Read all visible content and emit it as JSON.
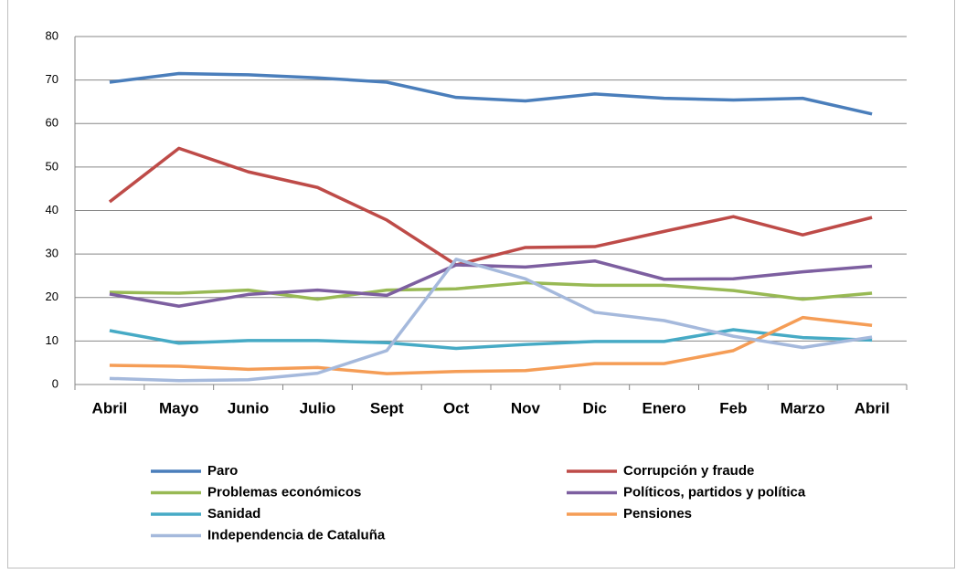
{
  "chart_data": {
    "type": "line",
    "categories": [
      "Abril",
      "Mayo",
      "Junio",
      "Julio",
      "Sept",
      "Oct",
      "Nov",
      "Dic",
      "Enero",
      "Feb",
      "Marzo",
      "Abril"
    ],
    "series": [
      {
        "name": "Paro",
        "color": "#4a7ebb",
        "values": [
          69.5,
          71.5,
          71.2,
          70.5,
          69.5,
          66,
          65.2,
          66.8,
          65.8,
          65.4,
          65.8,
          62.2
        ]
      },
      {
        "name": "Corrupción y fraude",
        "color": "#be4b48",
        "values": [
          42,
          54.3,
          48.9,
          45.3,
          37.8,
          27.5,
          31.5,
          31.7,
          35.2,
          38.6,
          34.4,
          38.4
        ]
      },
      {
        "name": "Problemas económicos",
        "color": "#98b954",
        "values": [
          21.2,
          21,
          21.7,
          19.6,
          21.7,
          22,
          23.4,
          22.8,
          22.8,
          21.6,
          19.6,
          21
        ]
      },
      {
        "name": "Políticos, partidos y política",
        "color": "#7d5fa0",
        "values": [
          20.8,
          18,
          20.7,
          21.7,
          20.5,
          27.5,
          27,
          28.4,
          24.2,
          24.3,
          25.9,
          27.2
        ]
      },
      {
        "name": "Sanidad",
        "color": "#46aac5",
        "values": [
          12.4,
          9.5,
          10.1,
          10.1,
          9.6,
          8.3,
          9.2,
          9.9,
          9.9,
          12.6,
          10.8,
          10.2
        ]
      },
      {
        "name": "Pensiones",
        "color": "#f59d56",
        "values": [
          4.4,
          4.2,
          3.5,
          3.9,
          2.5,
          3,
          3.2,
          4.8,
          4.8,
          7.8,
          15.4,
          13.6
        ]
      },
      {
        "name": "Independencia de Cataluña",
        "color": "#a5b9dc",
        "values": [
          1.4,
          0.9,
          1.1,
          2.6,
          7.8,
          28.8,
          24.3,
          16.6,
          14.7,
          11.1,
          8.5,
          10.9
        ]
      }
    ],
    "ylim": [
      0,
      80
    ],
    "yticks": [
      0,
      10,
      20,
      30,
      40,
      50,
      60,
      70,
      80
    ],
    "grid": true,
    "legend": "bottom"
  }
}
